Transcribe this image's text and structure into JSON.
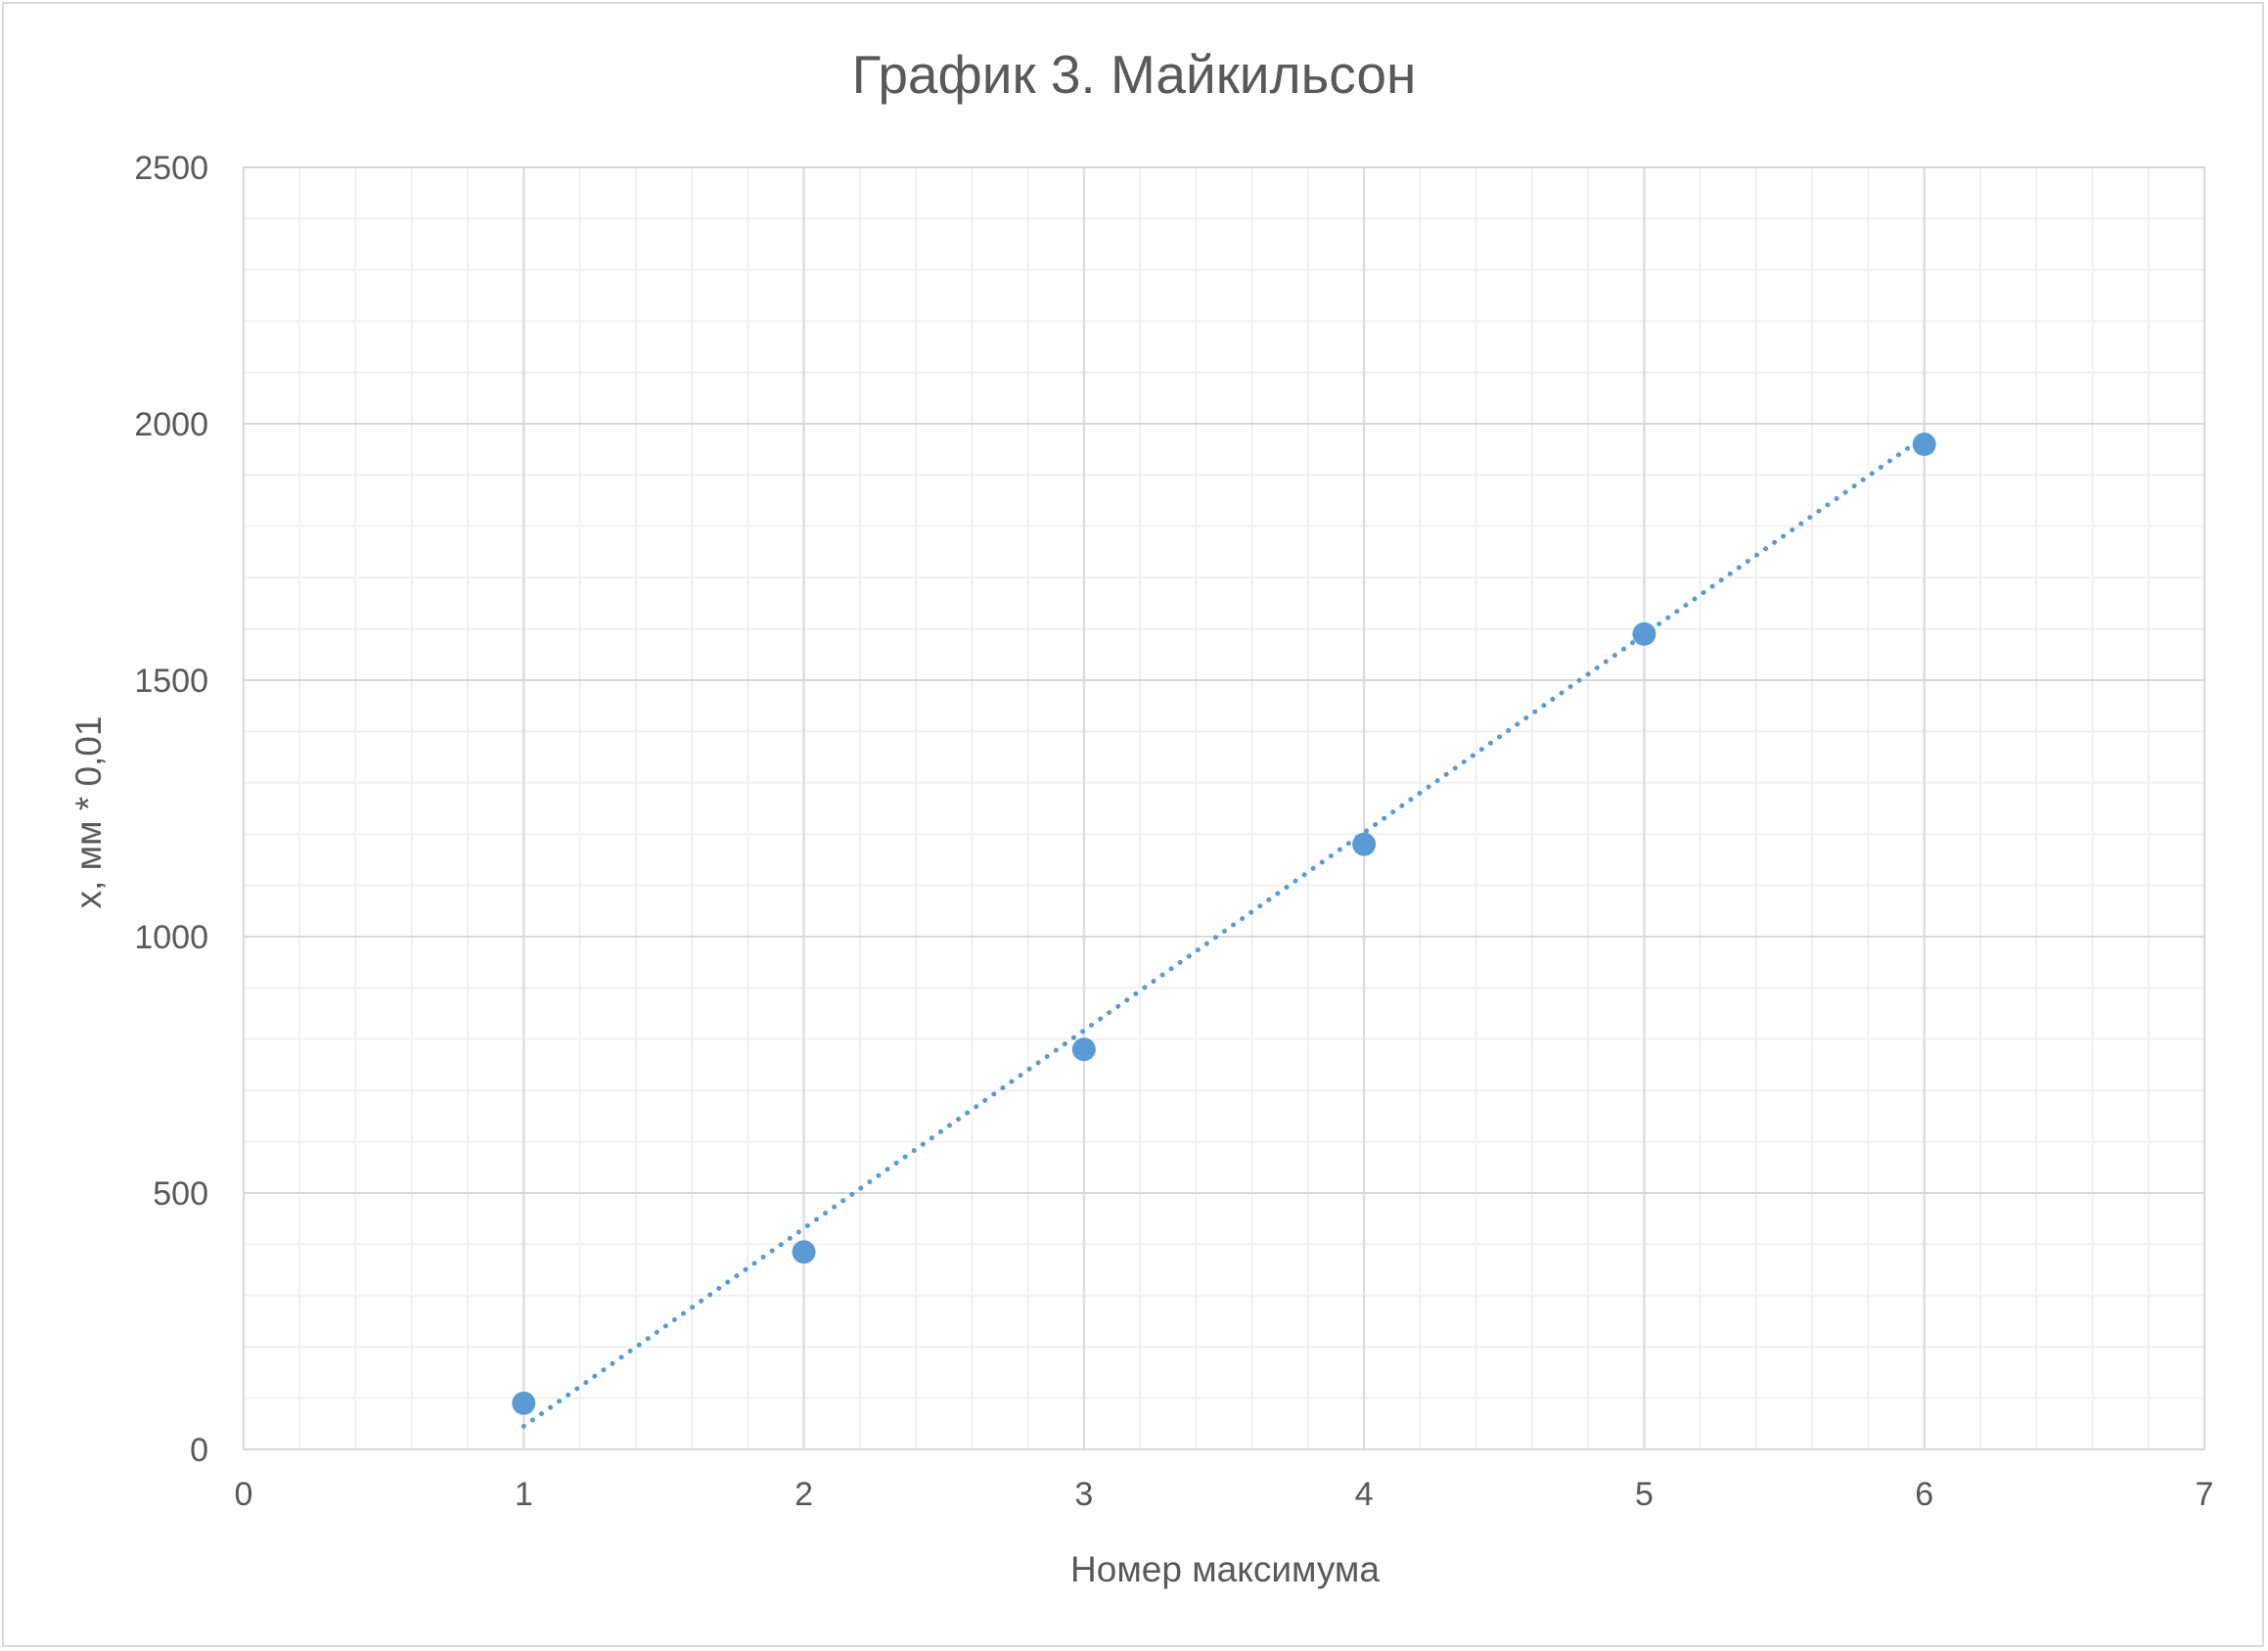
{
  "chart_data": {
    "type": "scatter",
    "title": "График 3. Майкильсон",
    "xlabel": "Номер максимума",
    "ylabel": "x, мм * 0,01",
    "xlim": [
      0,
      7
    ],
    "ylim": [
      0,
      2500
    ],
    "x_ticks": [
      "0",
      "1",
      "2",
      "3",
      "4",
      "5",
      "6",
      "7"
    ],
    "y_ticks": [
      "0",
      "500",
      "1000",
      "1500",
      "2000",
      "2500"
    ],
    "x_minor_step": 0.2,
    "y_minor_step": 100,
    "grid": true,
    "legend": false,
    "series": [
      {
        "x": [
          1,
          2,
          3,
          4,
          5,
          6
        ],
        "values": [
          90,
          385,
          780,
          1180,
          1590,
          1960
        ],
        "color": "#5b9bd5"
      }
    ],
    "trendline": {
      "type": "linear",
      "style": "dotted",
      "x_start": 1,
      "y_start": 45,
      "x_end": 6,
      "y_end": 1975,
      "color": "#5b9bd5"
    }
  }
}
